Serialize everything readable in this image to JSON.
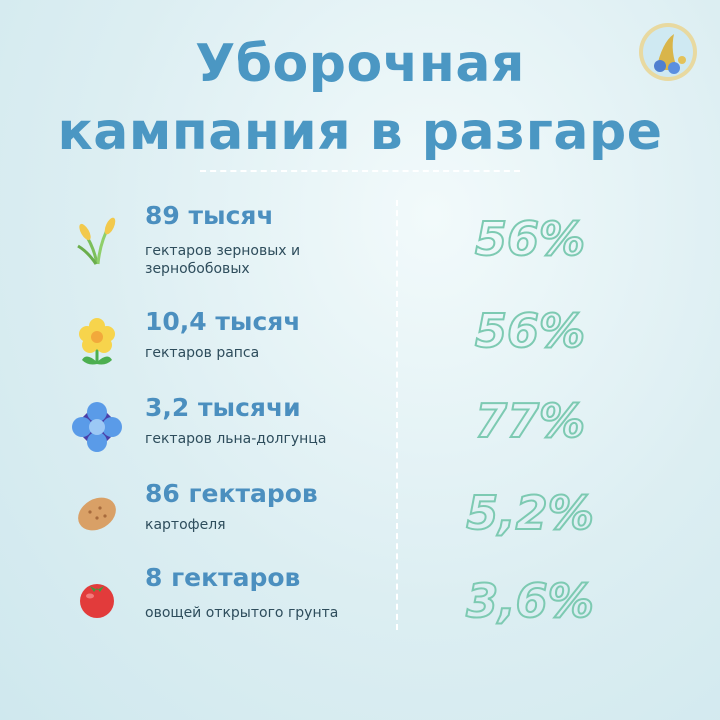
{
  "header": {
    "title_lines": [
      "Уборочная",
      "кампания в разгаре"
    ]
  },
  "items": [
    {
      "amount": "89 тысяч",
      "description": "гектаров зерновых и зернобобовых",
      "percent": "56%"
    },
    {
      "amount": "10,4 тысяч",
      "description": "гектаров рапса",
      "percent": "56%"
    },
    {
      "amount": "3,2 тысячи",
      "description": "гектаров льна-долгунца",
      "percent": "77%"
    },
    {
      "amount": "86 гектаров",
      "description": "картофеля",
      "percent": "5,2%"
    },
    {
      "amount": "8 гектаров",
      "description": "овощей открытого грунта",
      "percent": "3,6%"
    }
  ]
}
